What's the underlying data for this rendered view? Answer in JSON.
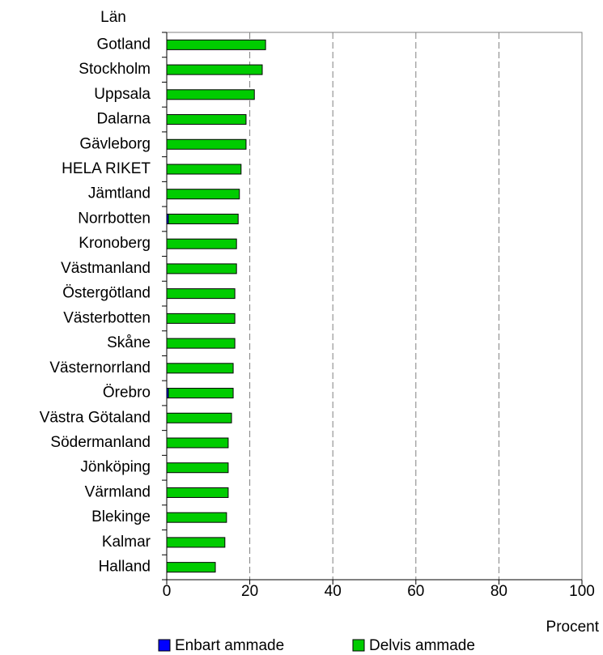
{
  "chart_data": {
    "type": "bar",
    "orientation": "horizontal",
    "stacked": true,
    "y_label": "Län",
    "x_label": "Procent",
    "categories": [
      "Gotland",
      "Stockholm",
      "Uppsala",
      "Dalarna",
      "Gävleborg",
      "HELA RIKET",
      "Jämtland",
      "Norrbotten",
      "Kronoberg",
      "Västmanland",
      "Östergötland",
      "Västerbotten",
      "Skåne",
      "Västernorrland",
      "Örebro",
      "Västra Götaland",
      "Södermanland",
      "Jönköping",
      "Värmland",
      "Blekinge",
      "Kalmar",
      "Halland"
    ],
    "series": [
      {
        "name": "Enbart ammade",
        "color": "#0000ff",
        "values": [
          0,
          0,
          0,
          0,
          0,
          0,
          0,
          0.4,
          0,
          0,
          0,
          0,
          0,
          0,
          0.4,
          0,
          0,
          0,
          0,
          0,
          0,
          0
        ]
      },
      {
        "name": "Delvis ammade",
        "color": "#00cc00",
        "values": [
          23.8,
          23.0,
          21.1,
          19.1,
          19.1,
          17.9,
          17.5,
          16.8,
          16.8,
          16.8,
          16.4,
          16.4,
          16.4,
          16.0,
          15.6,
          15.6,
          14.8,
          14.8,
          14.8,
          14.4,
          14.0,
          11.7
        ]
      }
    ],
    "xlim": [
      0,
      100
    ],
    "xticks": [
      0,
      20,
      40,
      60,
      80,
      100
    ],
    "grid": true,
    "legend": "bottom"
  }
}
